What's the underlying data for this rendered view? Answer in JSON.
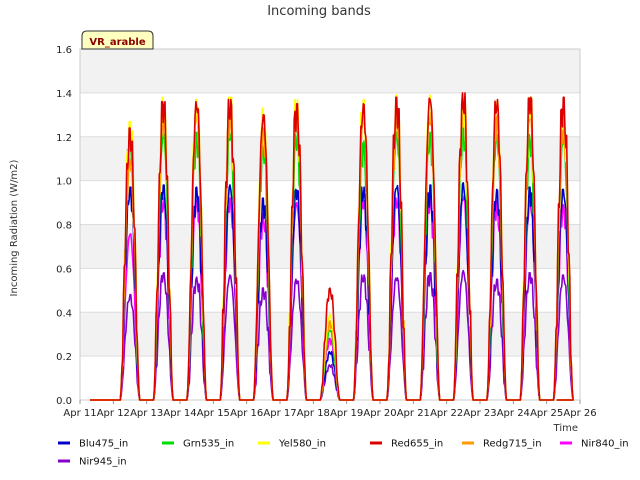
{
  "chart_data": {
    "type": "line",
    "title": "Incoming bands",
    "ylabel": "Incoming Radiation (W/m2)",
    "xlabel": "Time",
    "site_label": "VR_arable",
    "ylim": [
      0.0,
      1.6
    ],
    "yticks": [
      "0.0",
      "0.2",
      "0.4",
      "0.6",
      "0.8",
      "1.0",
      "1.2",
      "1.4",
      "1.6"
    ],
    "xticks": [
      "Apr 11",
      "Apr 12",
      "Apr 13",
      "Apr 14",
      "Apr 15",
      "Apr 16",
      "Apr 17",
      "Apr 18",
      "Apr 19",
      "Apr 20",
      "Apr 21",
      "Apr 22",
      "Apr 23",
      "Apr 24",
      "Apr 25",
      "Apr 26"
    ],
    "x_range": [
      "Apr 11",
      "Apr 26"
    ],
    "grid": "horizontal bands",
    "legend_position": "bottom",
    "day_labels": [
      "Apr 11",
      "Apr 12",
      "Apr 13",
      "Apr 14",
      "Apr 15",
      "Apr 16",
      "Apr 17",
      "Apr 18",
      "Apr 19",
      "Apr 20",
      "Apr 21",
      "Apr 22",
      "Apr 23",
      "Apr 24",
      "Apr 25"
    ],
    "series": [
      {
        "name": "Blu475_in",
        "color": "#0000cc",
        "daily_peak": [
          0,
          0.97,
          0.98,
          0.97,
          0.98,
          0.92,
          0.96,
          0.22,
          0.97,
          0.98,
          0.98,
          0.99,
          0.96,
          0.97,
          0.96
        ]
      },
      {
        "name": "Grn535_in",
        "color": "#00dd00",
        "daily_peak": [
          0,
          1.22,
          1.22,
          1.22,
          1.23,
          1.16,
          1.22,
          0.32,
          1.18,
          1.22,
          1.22,
          1.24,
          1.21,
          1.21,
          1.19
        ]
      },
      {
        "name": "Yel580_in",
        "color": "#ffff00",
        "daily_peak": [
          0,
          1.27,
          1.38,
          1.37,
          1.38,
          1.33,
          1.37,
          0.39,
          1.37,
          1.39,
          1.39,
          1.38,
          1.37,
          1.38,
          1.32
        ]
      },
      {
        "name": "Red655_in",
        "color": "#dd0000",
        "daily_peak": [
          0,
          1.24,
          1.36,
          1.36,
          1.37,
          1.3,
          1.35,
          0.51,
          1.35,
          1.38,
          1.38,
          1.4,
          1.37,
          1.38,
          1.38
        ]
      },
      {
        "name": "Redg715_in",
        "color": "#ff9900",
        "daily_peak": [
          0,
          1.1,
          1.31,
          1.31,
          1.31,
          1.24,
          1.3,
          0.36,
          1.3,
          1.31,
          1.31,
          1.32,
          1.3,
          1.31,
          1.28
        ]
      },
      {
        "name": "Nir840_in",
        "color": "#ff00ff",
        "daily_peak": [
          0,
          0.76,
          0.92,
          0.91,
          0.92,
          0.85,
          0.9,
          0.28,
          0.91,
          0.92,
          0.92,
          0.93,
          0.91,
          0.91,
          0.89
        ]
      },
      {
        "name": "Nir945_in",
        "color": "#8800cc",
        "daily_peak": [
          0,
          0.48,
          0.58,
          0.56,
          0.57,
          0.51,
          0.55,
          0.16,
          0.57,
          0.56,
          0.58,
          0.59,
          0.55,
          0.58,
          0.57
        ]
      }
    ]
  }
}
